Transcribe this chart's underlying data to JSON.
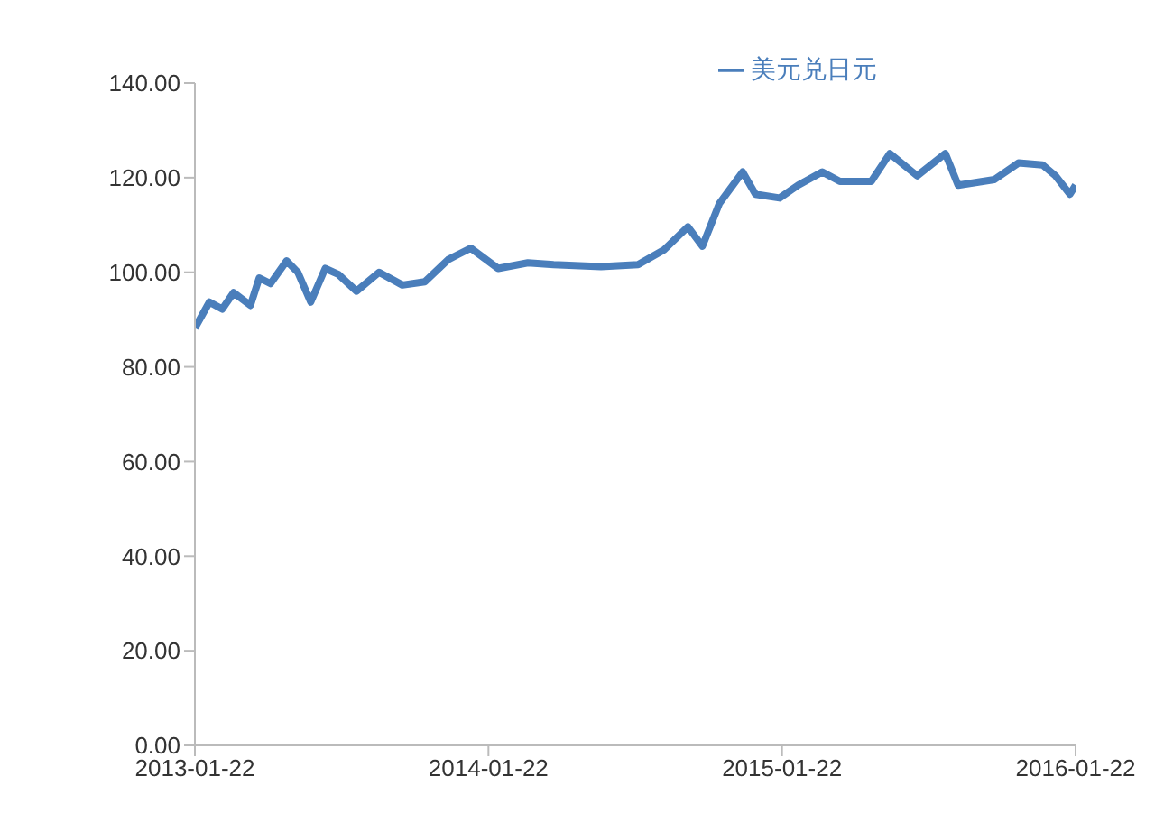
{
  "chart_data": {
    "type": "line",
    "x": [
      "2013-01-22",
      "2013-02-09",
      "2013-02-25",
      "2013-03-11",
      "2013-04-01",
      "2013-04-12",
      "2013-04-26",
      "2013-05-16",
      "2013-05-30",
      "2013-06-15",
      "2013-07-03",
      "2013-07-19",
      "2013-08-11",
      "2013-09-08",
      "2013-10-07",
      "2013-11-04",
      "2013-12-03",
      "2013-12-31",
      "2014-02-03",
      "2014-03-12",
      "2014-04-13",
      "2014-06-11",
      "2014-07-27",
      "2014-08-28",
      "2014-09-27",
      "2014-10-15",
      "2014-11-05",
      "2014-12-04",
      "2014-12-20",
      "2015-01-19",
      "2015-02-11",
      "2015-03-13",
      "2015-04-04",
      "2015-05-13",
      "2015-06-05",
      "2015-07-09",
      "2015-08-13",
      "2015-08-29",
      "2015-10-13",
      "2015-11-12",
      "2015-12-12",
      "2015-12-28",
      "2016-01-15",
      "2016-01-22"
    ],
    "series": [
      {
        "name": "美元兑日元",
        "color": "#4a7ebb",
        "values": [
          88.2,
          93.7,
          92.2,
          95.7,
          93,
          98.8,
          97.6,
          102.4,
          100,
          93.7,
          100.8,
          99.6,
          96,
          100,
          97.3,
          98,
          102.7,
          105.1,
          100.8,
          102,
          101.6,
          101.2,
          101.6,
          104.7,
          109.6,
          105.5,
          114.5,
          121.2,
          116.5,
          115.7,
          118.4,
          121.2,
          119.2,
          119.2,
          125.1,
          120.4,
          125.1,
          118.4,
          119.6,
          123.1,
          122.7,
          120.4,
          116.5,
          118.4
        ]
      }
    ],
    "xlim": [
      "2013-01-22",
      "2016-01-22"
    ],
    "xticks": [
      "2013-01-22",
      "2014-01-22",
      "2015-01-22",
      "2016-01-22"
    ],
    "ylim": [
      0,
      140
    ],
    "yticks": [
      {
        "value": 0,
        "label": "0.00"
      },
      {
        "value": 20,
        "label": "20.00"
      },
      {
        "value": 40,
        "label": "40.00"
      },
      {
        "value": 60,
        "label": "60.00"
      },
      {
        "value": 80,
        "label": "80.00"
      },
      {
        "value": 100,
        "label": "100.00"
      },
      {
        "value": 120,
        "label": "120.00"
      },
      {
        "value": 140,
        "label": "140.00"
      }
    ],
    "legend": "top",
    "grid": false,
    "marker": "none",
    "line_style": "solid"
  }
}
